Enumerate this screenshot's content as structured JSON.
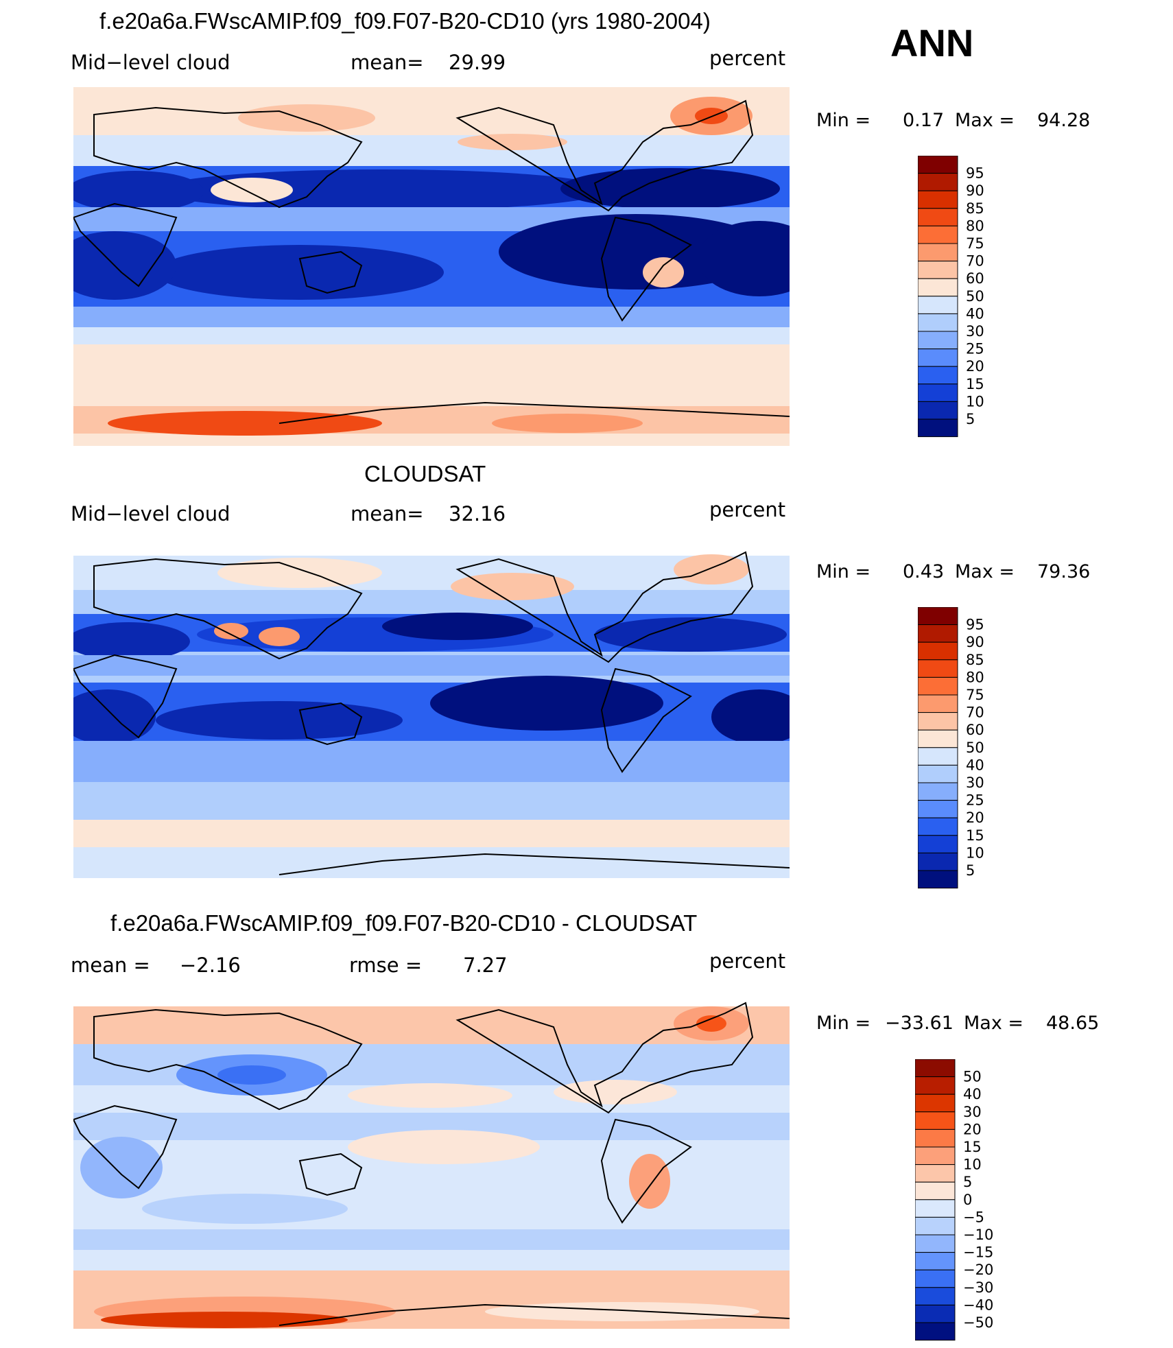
{
  "season": "ANN",
  "panels": [
    {
      "title": "f.e20a6a.FWscAMIP.f09_f09.F07-B20-CD10 (yrs 1980-2004)",
      "left_label": "Mid−level cloud",
      "center_label": "mean=",
      "center_value": "29.99",
      "right_label": "percent",
      "min_label": "Min  =",
      "min_value": "0.17",
      "max_label": "Max  =",
      "max_value": "94.28"
    },
    {
      "title": "CLOUDSAT",
      "left_label": "Mid−level cloud",
      "center_label": "mean=",
      "center_value": "32.16",
      "right_label": "percent",
      "min_label": "Min  =",
      "min_value": "0.43",
      "max_label": "Max  =",
      "max_value": "79.36"
    },
    {
      "title": "f.e20a6a.FWscAMIP.f09_f09.F07-B20-CD10 - CLOUDSAT",
      "left_label": "mean  =",
      "left_value": "−2.16",
      "center_label": "rmse  =",
      "center_value": "7.27",
      "right_label": "percent",
      "min_label": "Min  =",
      "min_value": "−33.61",
      "max_label": "Max  =",
      "max_value": "48.65"
    }
  ],
  "colorbars": {
    "field": {
      "ticks": [
        "95",
        "90",
        "85",
        "80",
        "75",
        "70",
        "60",
        "50",
        "40",
        "30",
        "25",
        "20",
        "15",
        "10",
        "5"
      ],
      "colors": [
        "#7f0000",
        "#b01a00",
        "#d93000",
        "#f04a14",
        "#fc6e36",
        "#fc9a6e",
        "#fcc4a6",
        "#fce6d6",
        "#d6e6fc",
        "#b0cefc",
        "#86aefc",
        "#5a8cfc",
        "#2a60f0",
        "#1440d6",
        "#0a28b0",
        "#00107e"
      ]
    },
    "diff": {
      "ticks": [
        "50",
        "40",
        "30",
        "20",
        "15",
        "10",
        "5",
        "0",
        "−5",
        "−10",
        "−15",
        "−20",
        "−30",
        "−40",
        "−50"
      ],
      "colors": [
        "#8c0c00",
        "#b81e00",
        "#dc3600",
        "#f65418",
        "#fc7a46",
        "#fca07a",
        "#fcc6aa",
        "#fce6d8",
        "#dae8fc",
        "#b8d2fc",
        "#92b6fc",
        "#6494fc",
        "#3a70f4",
        "#1a4cdc",
        "#0a2cb4",
        "#001080"
      ]
    }
  },
  "chart_data": [
    {
      "type": "heatmap",
      "title": "f.e20a6a.FWscAMIP.f09_f09.F07-B20-CD10 (yrs 1980-2004)",
      "variable": "Mid−level cloud",
      "units": "percent",
      "mean": 29.99,
      "min": 0.17,
      "max": 94.28,
      "levels": [
        5,
        10,
        15,
        20,
        25,
        30,
        40,
        50,
        60,
        70,
        75,
        80,
        85,
        90,
        95
      ]
    },
    {
      "type": "heatmap",
      "title": "CLOUDSAT",
      "variable": "Mid−level cloud",
      "units": "percent",
      "mean": 32.16,
      "min": 0.43,
      "max": 79.36,
      "levels": [
        5,
        10,
        15,
        20,
        25,
        30,
        40,
        50,
        60,
        70,
        75,
        80,
        85,
        90,
        95
      ]
    },
    {
      "type": "heatmap",
      "title": "f.e20a6a.FWscAMIP.f09_f09.F07-B20-CD10 - CLOUDSAT",
      "units": "percent",
      "mean": -2.16,
      "rmse": 7.27,
      "min": -33.61,
      "max": 48.65,
      "levels": [
        -50,
        -40,
        -30,
        -20,
        -15,
        -10,
        -5,
        0,
        5,
        10,
        15,
        20,
        30,
        40,
        50
      ]
    }
  ]
}
